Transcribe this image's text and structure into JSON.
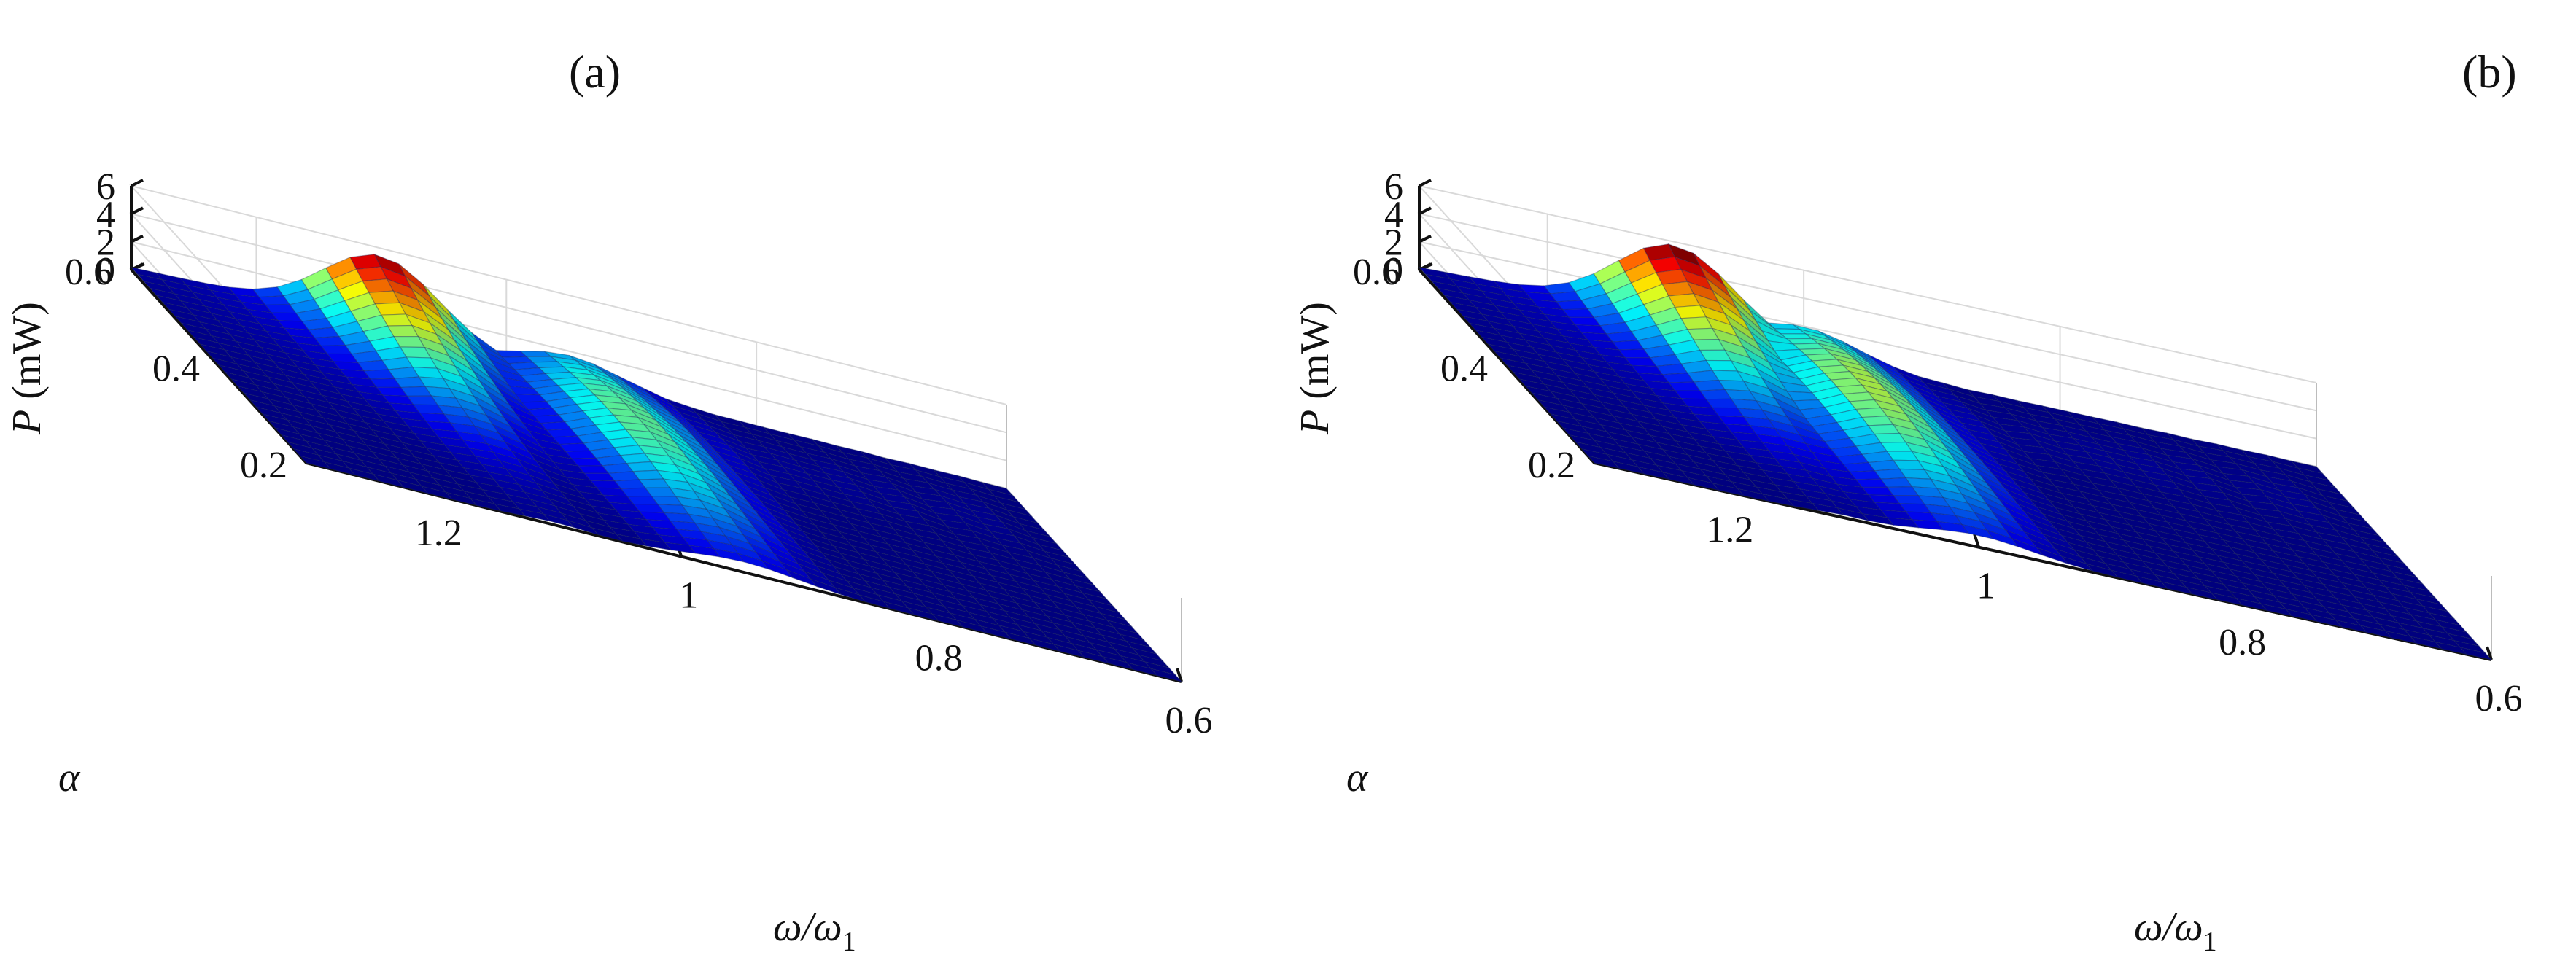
{
  "chart_data": [
    {
      "type": "surface",
      "panel_label": "(a)",
      "axes": {
        "x": {
          "label_main": "ω/ω",
          "label_sub": "1",
          "ticks": [
            "1.2",
            "1",
            "0.8",
            "0.6"
          ],
          "range": [
            1.3,
            0.6
          ]
        },
        "y": {
          "label": "α",
          "ticks": [
            "0.2",
            "0.4",
            "0.6"
          ],
          "range": [
            0.2,
            0.6
          ]
        },
        "z": {
          "label_var": "P",
          "label_unit": " (mW)",
          "ticks": [
            "0",
            "2",
            "4",
            "6"
          ],
          "range": [
            0,
            6
          ]
        }
      },
      "grid": true,
      "colormap": "jet",
      "features": [
        {
          "name": "ridge",
          "omega": 1.1,
          "alpha_min": 0.2,
          "alpha_max": 0.6,
          "peak_P_at_alpha_0_6": 5.3,
          "peak_P_at_alpha_0_2": 0.2
        },
        {
          "name": "hump",
          "omega": 0.95,
          "alpha": 0.45,
          "peak_P": 2.7
        }
      ]
    },
    {
      "type": "surface",
      "panel_label": "(b)",
      "axes": {
        "x": {
          "label_main": "ω/ω",
          "label_sub": "1",
          "ticks": [
            "1.2",
            "1",
            "0.8",
            "0.6"
          ],
          "range": [
            1.3,
            0.6
          ]
        },
        "y": {
          "label": "α",
          "ticks": [
            "0.2",
            "0.4",
            "0.6"
          ],
          "range": [
            0.2,
            0.6
          ]
        },
        "z": {
          "label_var": "P",
          "label_unit": " (mW)",
          "ticks": [
            "0",
            "2",
            "4",
            "6"
          ],
          "range": [
            0,
            6
          ]
        }
      },
      "grid": true,
      "colormap": "jet",
      "features": [
        {
          "name": "ridge",
          "omega": 1.1,
          "alpha_min": 0.2,
          "alpha_max": 0.6,
          "peak_P_at_alpha_0_6": 5.6,
          "peak_P_at_alpha_0_2": 0.2
        },
        {
          "name": "hump",
          "omega": 1.0,
          "alpha": 0.45,
          "peak_P": 3.1
        }
      ]
    }
  ]
}
